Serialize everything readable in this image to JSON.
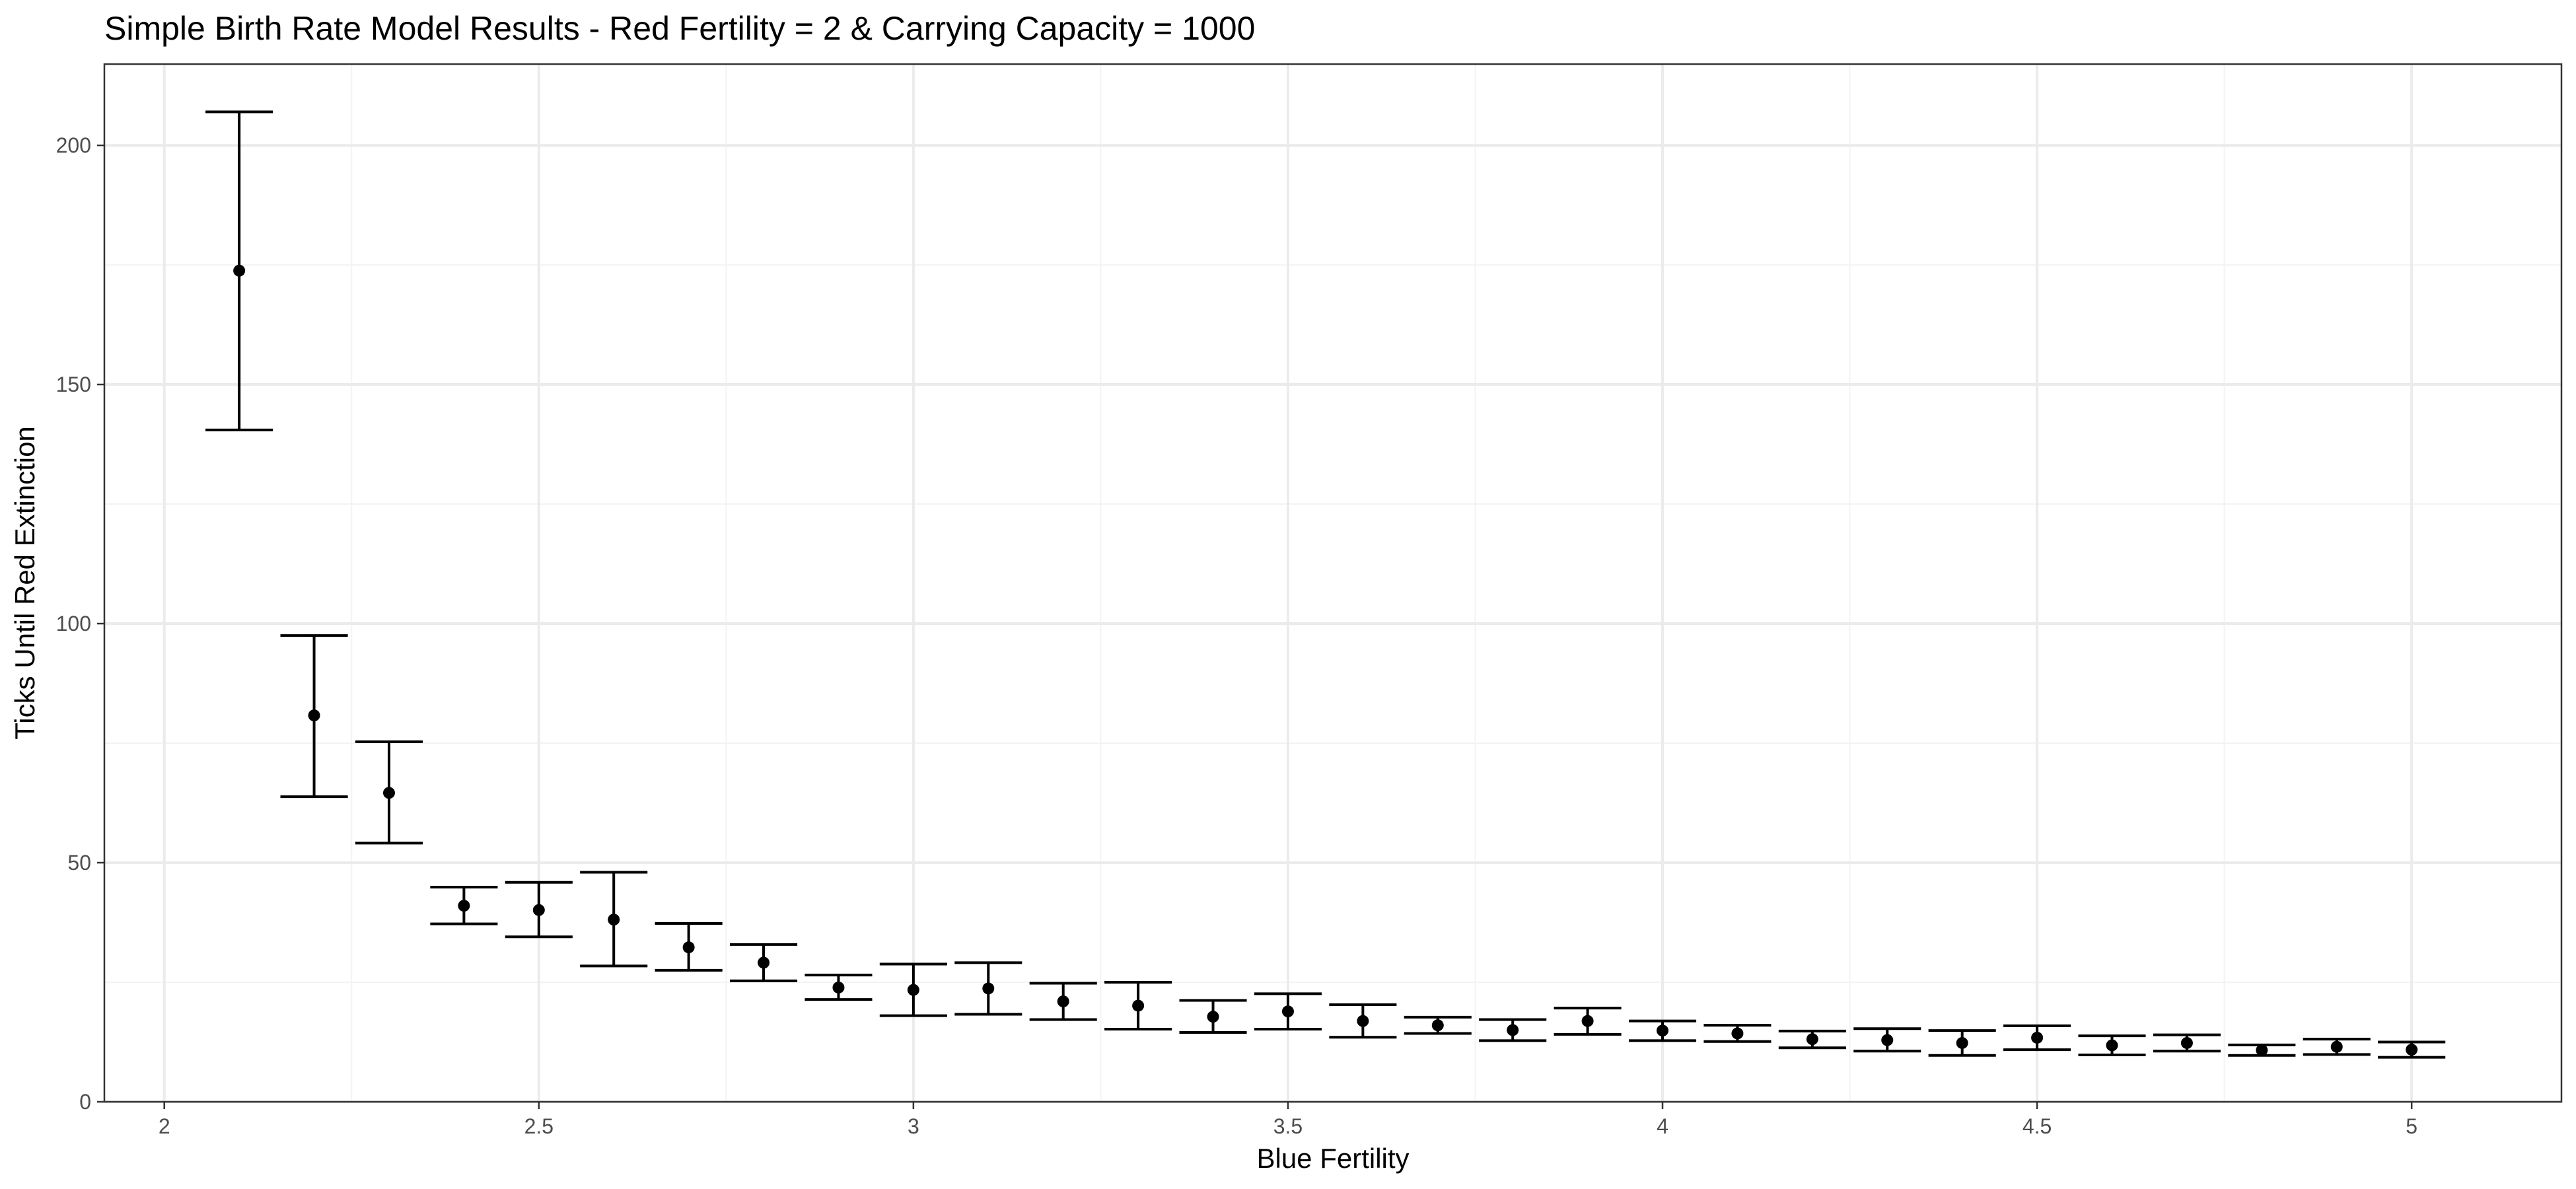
{
  "chart_data": {
    "type": "scatter",
    "title": "Simple Birth Rate Model Results - Red Fertility = 2 & Carrying Capacity = 1000",
    "xlabel": "Blue Fertility",
    "ylabel": "Ticks Until Red Extinction",
    "xlim": [
      1.92,
      5.2
    ],
    "ylim": [
      0,
      217
    ],
    "x_ticks": [
      2,
      2.5,
      3,
      3.5,
      4,
      4.5,
      5
    ],
    "x_tick_labels": [
      "2",
      "2.5",
      "3",
      "3.5",
      "4",
      "4.5",
      "5"
    ],
    "y_ticks": [
      0,
      50,
      100,
      150,
      200
    ],
    "y_tick_labels": [
      "0",
      "50",
      "100",
      "150",
      "200"
    ],
    "grid": true,
    "legend": "none",
    "series": [
      {
        "points": [
          {
            "x": 2.1,
            "y": 173.8,
            "ymin": 140.5,
            "ymax": 207.0
          },
          {
            "x": 2.2,
            "y": 80.8,
            "ymin": 63.8,
            "ymax": 97.5
          },
          {
            "x": 2.3,
            "y": 64.6,
            "ymin": 54.1,
            "ymax": 75.3
          },
          {
            "x": 2.4,
            "y": 41.0,
            "ymin": 37.2,
            "ymax": 44.9
          },
          {
            "x": 2.5,
            "y": 40.1,
            "ymin": 34.5,
            "ymax": 45.9
          },
          {
            "x": 2.6,
            "y": 38.1,
            "ymin": 28.4,
            "ymax": 48.0
          },
          {
            "x": 2.7,
            "y": 32.3,
            "ymin": 27.5,
            "ymax": 37.3
          },
          {
            "x": 2.8,
            "y": 29.1,
            "ymin": 25.3,
            "ymax": 32.9
          },
          {
            "x": 2.9,
            "y": 23.9,
            "ymin": 21.4,
            "ymax": 26.5
          },
          {
            "x": 3.0,
            "y": 23.4,
            "ymin": 18.0,
            "ymax": 28.8
          },
          {
            "x": 3.1,
            "y": 23.7,
            "ymin": 18.3,
            "ymax": 29.1
          },
          {
            "x": 3.2,
            "y": 21.0,
            "ymin": 17.2,
            "ymax": 24.8
          },
          {
            "x": 3.3,
            "y": 20.1,
            "ymin": 15.2,
            "ymax": 25.0
          },
          {
            "x": 3.4,
            "y": 17.8,
            "ymin": 14.5,
            "ymax": 21.2
          },
          {
            "x": 3.5,
            "y": 18.9,
            "ymin": 15.2,
            "ymax": 22.6
          },
          {
            "x": 3.6,
            "y": 16.9,
            "ymin": 13.5,
            "ymax": 20.3
          },
          {
            "x": 3.7,
            "y": 16.0,
            "ymin": 14.3,
            "ymax": 17.7
          },
          {
            "x": 3.8,
            "y": 15.0,
            "ymin": 12.8,
            "ymax": 17.2
          },
          {
            "x": 3.9,
            "y": 16.9,
            "ymin": 14.1,
            "ymax": 19.6
          },
          {
            "x": 4.0,
            "y": 14.9,
            "ymin": 12.8,
            "ymax": 16.9
          },
          {
            "x": 4.1,
            "y": 14.3,
            "ymin": 12.6,
            "ymax": 16.0
          },
          {
            "x": 4.2,
            "y": 13.1,
            "ymin": 11.3,
            "ymax": 14.8
          },
          {
            "x": 4.3,
            "y": 12.9,
            "ymin": 10.6,
            "ymax": 15.3
          },
          {
            "x": 4.4,
            "y": 12.3,
            "ymin": 9.7,
            "ymax": 14.9
          },
          {
            "x": 4.5,
            "y": 13.4,
            "ymin": 10.9,
            "ymax": 15.9
          },
          {
            "x": 4.6,
            "y": 11.8,
            "ymin": 9.8,
            "ymax": 13.8
          },
          {
            "x": 4.7,
            "y": 12.3,
            "ymin": 10.6,
            "ymax": 14.0
          },
          {
            "x": 4.8,
            "y": 10.8,
            "ymin": 9.7,
            "ymax": 11.9
          },
          {
            "x": 4.9,
            "y": 11.5,
            "ymin": 9.9,
            "ymax": 13.1
          },
          {
            "x": 5.0,
            "y": 10.9,
            "ymin": 9.3,
            "ymax": 12.5
          }
        ]
      }
    ]
  }
}
